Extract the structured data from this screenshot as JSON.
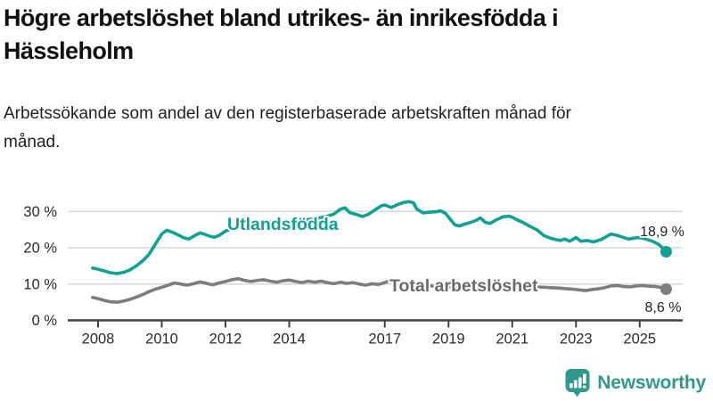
{
  "header": {
    "title": "Högre arbetslöshet bland utrikes- än inrikesfödda i Hässleholm",
    "subtitle": "Arbetssökande som andel av den registerbaserade arbetskraften månad för månad."
  },
  "footer": {
    "brand": "Newsworthy",
    "logo_icon": "bar-chart-speech-bubble-icon",
    "brand_color": "#2f9a8b"
  },
  "chart_data": {
    "type": "line",
    "grid": "horizontal",
    "legend_position": "inline-labels",
    "x_axis": {
      "range": [
        2007.83,
        2026.1
      ],
      "ticks": [
        2008,
        2010,
        2012,
        2014,
        2017,
        2019,
        2021,
        2023,
        2025
      ]
    },
    "y_axis": {
      "range": [
        0,
        34
      ],
      "ticks": [
        0,
        10,
        20,
        30
      ],
      "tick_suffix": " %"
    },
    "colors": {
      "grid": "#d9d9d9",
      "axis": "#404040",
      "tick_text": "#2b2b2b",
      "end_label_text": "#222222"
    },
    "series": [
      {
        "name": "Utlandsfödda",
        "color": "#0fa193",
        "label_color": "#0fa193",
        "end_label": "18,9 %",
        "end_value": 18.9,
        "points": [
          [
            2007.83,
            14.4
          ],
          [
            2008.0,
            14.1
          ],
          [
            2008.2,
            13.6
          ],
          [
            2008.4,
            13.1
          ],
          [
            2008.6,
            12.9
          ],
          [
            2008.8,
            13.2
          ],
          [
            2009.0,
            13.9
          ],
          [
            2009.2,
            15.0
          ],
          [
            2009.4,
            16.4
          ],
          [
            2009.6,
            18.2
          ],
          [
            2009.8,
            21.0
          ],
          [
            2010.0,
            23.8
          ],
          [
            2010.15,
            24.8
          ],
          [
            2010.3,
            24.4
          ],
          [
            2010.5,
            23.6
          ],
          [
            2010.7,
            22.7
          ],
          [
            2010.85,
            22.4
          ],
          [
            2011.0,
            23.2
          ],
          [
            2011.2,
            24.1
          ],
          [
            2011.35,
            23.7
          ],
          [
            2011.5,
            23.2
          ],
          [
            2011.65,
            22.9
          ],
          [
            2011.8,
            23.4
          ],
          [
            2012.0,
            24.6
          ],
          [
            2012.2,
            25.3
          ],
          [
            2012.4,
            26.0
          ],
          [
            2012.6,
            26.6
          ],
          [
            2012.8,
            26.8
          ],
          [
            2013.0,
            26.4
          ],
          [
            2013.2,
            26.8
          ],
          [
            2013.4,
            27.2
          ],
          [
            2013.6,
            26.9
          ],
          [
            2013.8,
            27.2
          ],
          [
            2014.0,
            27.4
          ],
          [
            2014.2,
            27.8
          ],
          [
            2014.4,
            27.5
          ],
          [
            2014.6,
            27.8
          ],
          [
            2014.8,
            28.0
          ],
          [
            2015.0,
            28.3
          ],
          [
            2015.2,
            28.7
          ],
          [
            2015.4,
            29.3
          ],
          [
            2015.6,
            30.6
          ],
          [
            2015.75,
            31.0
          ],
          [
            2015.9,
            29.7
          ],
          [
            2016.1,
            29.2
          ],
          [
            2016.3,
            28.6
          ],
          [
            2016.5,
            29.3
          ],
          [
            2016.7,
            30.5
          ],
          [
            2016.9,
            31.6
          ],
          [
            2017.0,
            31.8
          ],
          [
            2017.2,
            31.1
          ],
          [
            2017.4,
            31.9
          ],
          [
            2017.6,
            32.5
          ],
          [
            2017.75,
            32.7
          ],
          [
            2017.9,
            32.4
          ],
          [
            2018.0,
            30.7
          ],
          [
            2018.2,
            29.6
          ],
          [
            2018.4,
            29.8
          ],
          [
            2018.6,
            29.9
          ],
          [
            2018.75,
            30.2
          ],
          [
            2018.9,
            29.5
          ],
          [
            2019.05,
            27.9
          ],
          [
            2019.2,
            26.3
          ],
          [
            2019.35,
            26.0
          ],
          [
            2019.5,
            26.5
          ],
          [
            2019.7,
            27.0
          ],
          [
            2019.85,
            27.5
          ],
          [
            2020.0,
            28.2
          ],
          [
            2020.15,
            27.0
          ],
          [
            2020.3,
            26.7
          ],
          [
            2020.5,
            27.7
          ],
          [
            2020.7,
            28.5
          ],
          [
            2020.9,
            28.7
          ],
          [
            2021.0,
            28.4
          ],
          [
            2021.15,
            27.7
          ],
          [
            2021.35,
            26.9
          ],
          [
            2021.6,
            25.7
          ],
          [
            2021.8,
            24.8
          ],
          [
            2022.0,
            23.3
          ],
          [
            2022.25,
            22.5
          ],
          [
            2022.5,
            22.0
          ],
          [
            2022.65,
            22.4
          ],
          [
            2022.8,
            21.8
          ],
          [
            2023.0,
            22.8
          ],
          [
            2023.15,
            21.8
          ],
          [
            2023.35,
            22.0
          ],
          [
            2023.55,
            21.6
          ],
          [
            2023.8,
            22.3
          ],
          [
            2024.1,
            23.8
          ],
          [
            2024.3,
            23.4
          ],
          [
            2024.5,
            22.8
          ],
          [
            2024.65,
            22.4
          ],
          [
            2024.85,
            22.7
          ],
          [
            2025.0,
            22.8
          ],
          [
            2025.2,
            22.4
          ],
          [
            2025.4,
            21.8
          ],
          [
            2025.6,
            20.9
          ],
          [
            2025.75,
            19.7
          ],
          [
            2025.83,
            18.9
          ]
        ]
      },
      {
        "name": "Total arbetslöshet",
        "color": "#7d7d7d",
        "label_color": "#6b6b6b",
        "end_label": "8,6 %",
        "end_value": 8.6,
        "points": [
          [
            2007.83,
            6.3
          ],
          [
            2008.0,
            6.0
          ],
          [
            2008.2,
            5.5
          ],
          [
            2008.4,
            5.1
          ],
          [
            2008.6,
            5.0
          ],
          [
            2008.8,
            5.3
          ],
          [
            2009.0,
            5.8
          ],
          [
            2009.2,
            6.4
          ],
          [
            2009.4,
            7.1
          ],
          [
            2009.6,
            7.9
          ],
          [
            2009.8,
            8.6
          ],
          [
            2010.0,
            9.1
          ],
          [
            2010.2,
            9.7
          ],
          [
            2010.4,
            10.3
          ],
          [
            2010.6,
            10.0
          ],
          [
            2010.8,
            9.7
          ],
          [
            2011.0,
            10.1
          ],
          [
            2011.2,
            10.6
          ],
          [
            2011.4,
            10.2
          ],
          [
            2011.6,
            9.8
          ],
          [
            2011.8,
            10.3
          ],
          [
            2012.0,
            10.7
          ],
          [
            2012.2,
            11.2
          ],
          [
            2012.4,
            11.5
          ],
          [
            2012.6,
            11.0
          ],
          [
            2012.8,
            10.7
          ],
          [
            2013.0,
            11.0
          ],
          [
            2013.2,
            11.2
          ],
          [
            2013.4,
            10.8
          ],
          [
            2013.6,
            10.5
          ],
          [
            2013.8,
            10.9
          ],
          [
            2014.0,
            11.1
          ],
          [
            2014.2,
            10.7
          ],
          [
            2014.4,
            10.4
          ],
          [
            2014.6,
            10.8
          ],
          [
            2014.8,
            10.5
          ],
          [
            2015.0,
            10.8
          ],
          [
            2015.2,
            10.4
          ],
          [
            2015.4,
            10.1
          ],
          [
            2015.6,
            10.5
          ],
          [
            2015.8,
            10.2
          ],
          [
            2016.0,
            10.4
          ],
          [
            2016.2,
            10.0
          ],
          [
            2016.4,
            9.7
          ],
          [
            2016.6,
            10.1
          ],
          [
            2016.8,
            9.9
          ],
          [
            2017.0,
            10.4
          ],
          [
            2017.15,
            10.9
          ],
          [
            2017.4,
            10.4
          ],
          [
            2017.7,
            10.0
          ],
          [
            2018.0,
            9.8
          ],
          [
            2018.4,
            9.5
          ],
          [
            2018.8,
            9.3
          ],
          [
            2019.2,
            9.1
          ],
          [
            2019.6,
            9.0
          ],
          [
            2020.0,
            9.4
          ],
          [
            2020.3,
            10.2
          ],
          [
            2020.6,
            10.1
          ],
          [
            2021.0,
            9.7
          ],
          [
            2021.4,
            9.4
          ],
          [
            2021.8,
            9.2
          ],
          [
            2022.2,
            9.0
          ],
          [
            2022.5,
            8.9
          ],
          [
            2022.7,
            8.7
          ],
          [
            2022.9,
            8.6
          ],
          [
            2023.1,
            8.4
          ],
          [
            2023.3,
            8.2
          ],
          [
            2023.5,
            8.5
          ],
          [
            2023.7,
            8.7
          ],
          [
            2023.9,
            9.0
          ],
          [
            2024.1,
            9.5
          ],
          [
            2024.3,
            9.6
          ],
          [
            2024.5,
            9.3
          ],
          [
            2024.7,
            9.2
          ],
          [
            2024.9,
            9.5
          ],
          [
            2025.1,
            9.6
          ],
          [
            2025.3,
            9.4
          ],
          [
            2025.5,
            9.3
          ],
          [
            2025.65,
            9.1
          ],
          [
            2025.83,
            8.6
          ]
        ]
      }
    ]
  }
}
